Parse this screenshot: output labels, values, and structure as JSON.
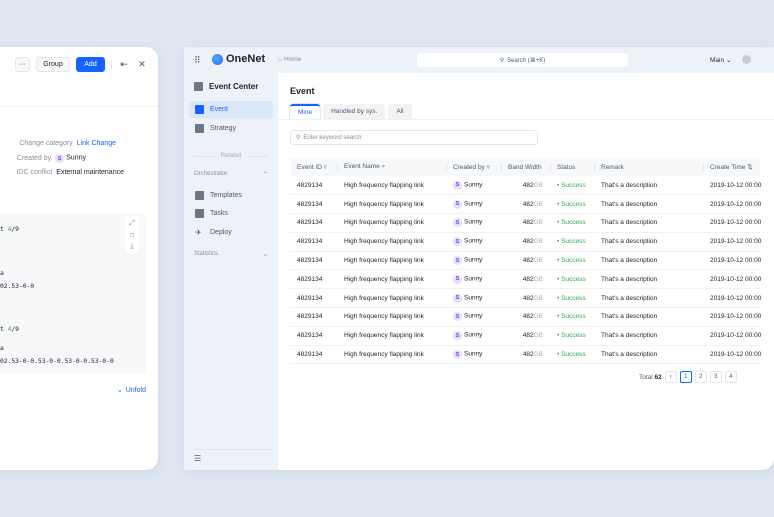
{
  "detail_panel": {
    "toolbar": {
      "more_label": "···",
      "group_label": "Group",
      "add_label": "Add",
      "pin_icon": "⇤",
      "close_icon": "✕"
    },
    "fields": [
      {
        "key": "Change category",
        "value": "Link Change"
      },
      {
        "key": "Created by",
        "avatar": "S",
        "value": "Sunny"
      },
      {
        "key": "IDC conflict",
        "value": "External maintenance"
      }
    ],
    "code_lines": [
      {
        "pre": "t ",
        "hl": "4",
        "post": "/9"
      },
      {
        "pre": "a",
        "hl": "",
        "post": ""
      },
      {
        "pre": "02.53-0-0",
        "hl": "",
        "post": ""
      },
      {
        "pre": "t ",
        "hl": "4",
        "post": "/9"
      },
      {
        "pre": "a",
        "hl": "",
        "post": ""
      },
      {
        "pre": "02.53-0-0.53-0-0.53-0-0.53-0-0",
        "hl": "",
        "post": ""
      }
    ],
    "unfold_label": "Unfold"
  },
  "app": {
    "name": "OneNet",
    "breadcrumb": "Home",
    "search_placeholder": "Search (⌘+K)",
    "workspace": "Main ⌄",
    "sidebar": {
      "title": "Event Center",
      "items": [
        {
          "label": "Event"
        },
        {
          "label": "Strategy"
        }
      ],
      "related_label": "Related",
      "groups": [
        {
          "label": "Orchestrator",
          "chevron": "⌃"
        },
        {
          "label": "Statistics",
          "chevron": "⌄"
        }
      ],
      "orchestrator_items": [
        {
          "label": "Templates"
        },
        {
          "label": "Tasks"
        },
        {
          "label": "Deploy"
        }
      ]
    },
    "page_title": "Event",
    "tabs": [
      {
        "label": "Mine"
      },
      {
        "label": "Handled by sys."
      },
      {
        "label": "All"
      }
    ],
    "keyword_placeholder": "Enter keyword search",
    "table": {
      "headers": [
        "Event ID ▿",
        "Event Name ⌕",
        "Created by ▿",
        "Band Width",
        "Status",
        "Remark",
        "Create Time ⇅"
      ],
      "rows": [
        {
          "id": "4829134",
          "name": "High frequency flapping link",
          "avatar": "S",
          "creator": "Sunny",
          "bw": "482",
          "unit": "GB",
          "status": "Success",
          "remark": "That's a description",
          "time": "2019-10-12 00:00"
        },
        {
          "id": "4829134",
          "name": "High frequency flapping link",
          "avatar": "S",
          "creator": "Sunny",
          "bw": "482",
          "unit": "GB",
          "status": "Success",
          "remark": "That's a description",
          "time": "2019-10-12 00:00"
        },
        {
          "id": "4829134",
          "name": "High frequency flapping link",
          "avatar": "S",
          "creator": "Sunny",
          "bw": "482",
          "unit": "GB",
          "status": "Success",
          "remark": "That's a description",
          "time": "2019-10-12 00:00"
        },
        {
          "id": "4829134",
          "name": "High frequency flapping link",
          "avatar": "S",
          "creator": "Sunny",
          "bw": "482",
          "unit": "GB",
          "status": "Success",
          "remark": "That's a description",
          "time": "2019-10-12 00:00"
        },
        {
          "id": "4829134",
          "name": "High frequency flapping link",
          "avatar": "S",
          "creator": "Sunny",
          "bw": "482",
          "unit": "GB",
          "status": "Success",
          "remark": "That's a description",
          "time": "2019-10-12 00:00"
        },
        {
          "id": "4829134",
          "name": "High frequency flapping link",
          "avatar": "S",
          "creator": "Sunny",
          "bw": "482",
          "unit": "GB",
          "status": "Success",
          "remark": "That's a description",
          "time": "2019-10-12 00:00"
        },
        {
          "id": "4829134",
          "name": "High frequency flapping link",
          "avatar": "S",
          "creator": "Sunny",
          "bw": "482",
          "unit": "GB",
          "status": "Success",
          "remark": "That's a description",
          "time": "2019-10-12 00:00"
        },
        {
          "id": "4829134",
          "name": "High frequency flapping link",
          "avatar": "S",
          "creator": "Sunny",
          "bw": "482",
          "unit": "GB",
          "status": "Success",
          "remark": "That's a description",
          "time": "2019-10-12 00:00"
        },
        {
          "id": "4829134",
          "name": "High frequency flapping link",
          "avatar": "S",
          "creator": "Sunny",
          "bw": "482",
          "unit": "GB",
          "status": "Success",
          "remark": "That's a description",
          "time": "2019-10-12 00:00"
        },
        {
          "id": "4829134",
          "name": "High frequency flapping link",
          "avatar": "S",
          "creator": "Sunny",
          "bw": "482",
          "unit": "GB",
          "status": "Success",
          "remark": "That's a description",
          "time": "2019-10-12 00:00"
        }
      ]
    },
    "pagination": {
      "total_label": "Total",
      "total": "62",
      "prev": "‹",
      "pages": [
        "1",
        "2",
        "3",
        "4"
      ],
      "current": "1"
    }
  }
}
